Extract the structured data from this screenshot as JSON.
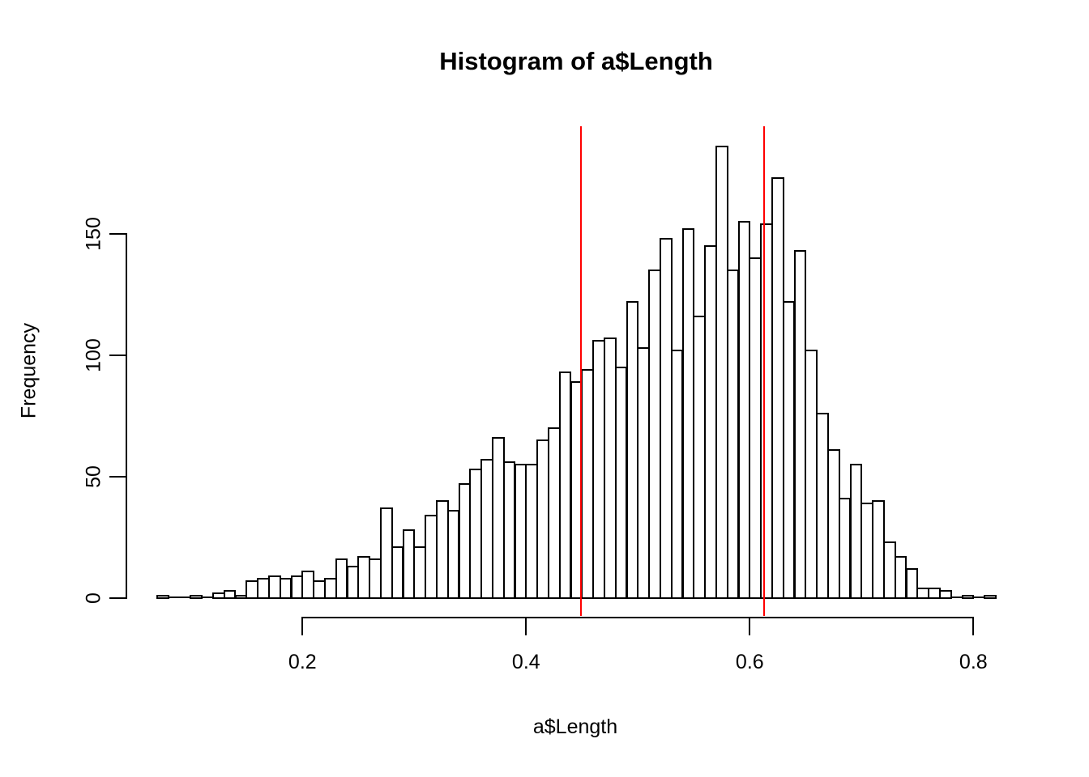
{
  "chart_data": {
    "type": "bar",
    "subtype": "histogram",
    "title": "Histogram of a$Length",
    "xlabel": "a$Length",
    "ylabel": "Frequency",
    "bin_start": 0.07,
    "bin_width": 0.01,
    "counts": [
      1,
      0,
      0,
      1,
      0,
      2,
      3,
      1,
      7,
      8,
      9,
      8,
      9,
      11,
      7,
      8,
      16,
      13,
      17,
      16,
      37,
      21,
      28,
      21,
      34,
      40,
      36,
      47,
      53,
      57,
      66,
      56,
      55,
      55,
      65,
      70,
      93,
      89,
      94,
      106,
      107,
      95,
      122,
      103,
      135,
      148,
      102,
      152,
      116,
      145,
      186,
      135,
      155,
      140,
      154,
      173,
      122,
      143,
      102,
      76,
      61,
      41,
      55,
      39,
      40,
      23,
      17,
      12,
      4,
      4,
      3,
      0,
      1,
      0,
      1
    ],
    "x_ticks": [
      0.2,
      0.4,
      0.6,
      0.8
    ],
    "x_tick_labels": [
      "0.2",
      "0.4",
      "0.6",
      "0.8"
    ],
    "y_ticks": [
      0,
      50,
      100,
      150
    ],
    "y_tick_labels": [
      "0",
      "50",
      "100",
      "150"
    ],
    "xlim": [
      0.07,
      0.82
    ],
    "ylim": [
      0,
      186
    ],
    "grid": false,
    "legend": null,
    "vlines": [
      {
        "x": 0.449,
        "color": "#ff0000"
      },
      {
        "x": 0.613,
        "color": "#ff0000"
      }
    ],
    "colors": {
      "bar_fill": "#ffffff",
      "bar_border": "#000000",
      "axis": "#000000",
      "text": "#000000",
      "background": "#ffffff"
    }
  }
}
